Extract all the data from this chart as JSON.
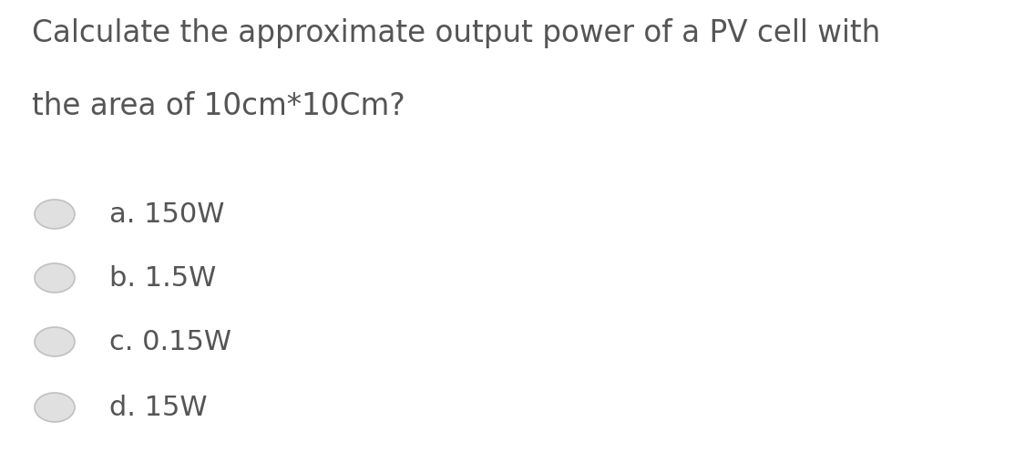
{
  "question_line1": "Calculate the approximate output power of a PV cell with",
  "question_line2": "the area of 10cm*10Cm?",
  "options": [
    "a. 150W",
    "b. 1.5W",
    "c. 0.15W",
    "d. 15W"
  ],
  "background_color": "#ffffff",
  "text_color": "#555555",
  "question_fontsize": 23.5,
  "option_fontsize": 22,
  "radio_face_color": "#e0e0e0",
  "radio_edge_color": "#c0c0c0"
}
